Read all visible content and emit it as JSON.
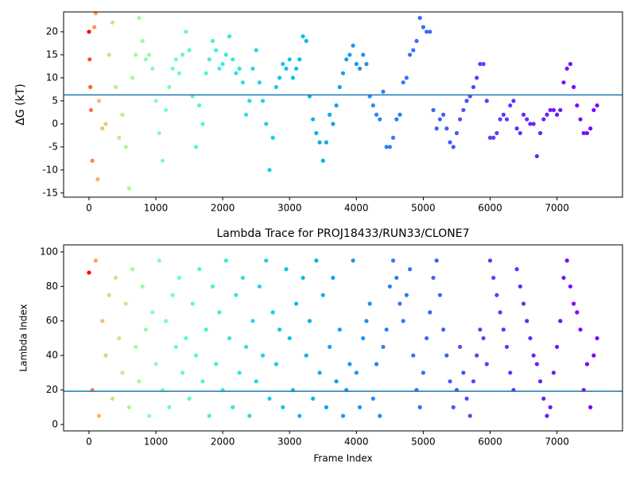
{
  "chart_data": [
    {
      "type": "scatter",
      "ylabel": "ΔG (kT)",
      "colormap": "rainbow_r",
      "x": [
        0,
        10,
        20,
        30,
        50,
        80,
        100,
        130,
        150,
        200,
        250,
        300,
        350,
        400,
        450,
        500,
        550,
        600,
        650,
        700,
        750,
        800,
        850,
        900,
        950,
        1000,
        1050,
        1100,
        1150,
        1200,
        1250,
        1300,
        1350,
        1400,
        1450,
        1500,
        1550,
        1600,
        1650,
        1700,
        1750,
        1800,
        1850,
        1900,
        1950,
        2000,
        2050,
        2100,
        2150,
        2200,
        2250,
        2300,
        2350,
        2400,
        2450,
        2500,
        2550,
        2600,
        2650,
        2700,
        2750,
        2800,
        2850,
        2900,
        2950,
        3000,
        3050,
        3100,
        3150,
        3200,
        3250,
        3300,
        3350,
        3400,
        3450,
        3500,
        3550,
        3600,
        3650,
        3700,
        3750,
        3800,
        3850,
        3900,
        3950,
        4000,
        4050,
        4100,
        4150,
        4200,
        4250,
        4300,
        4350,
        4400,
        4450,
        4500,
        4550,
        4600,
        4650,
        4700,
        4750,
        4800,
        4850,
        4900,
        4950,
        5000,
        5050,
        5100,
        5150,
        5200,
        5250,
        5300,
        5350,
        5400,
        5450,
        5500,
        5550,
        5600,
        5650,
        5700,
        5750,
        5800,
        5850,
        5900,
        5950,
        6000,
        6050,
        6100,
        6150,
        6200,
        6250,
        6300,
        6350,
        6400,
        6450,
        6500,
        6550,
        6600,
        6650,
        6700,
        6750,
        6800,
        6850,
        6900,
        6950,
        7000,
        7050,
        7100,
        7150,
        7200,
        7250,
        7300,
        7350,
        7400,
        7450,
        7500,
        7550,
        7600
      ],
      "values": [
        20,
        14,
        8,
        3,
        -8,
        21,
        24,
        -12,
        5,
        -1,
        0,
        15,
        22,
        8,
        -3,
        2,
        -5,
        -14,
        10,
        15,
        23,
        18,
        14,
        15,
        12,
        5,
        -2,
        -8,
        3,
        8,
        12,
        14,
        11,
        15,
        20,
        16,
        6,
        -5,
        4,
        0,
        11,
        14,
        18,
        16,
        12,
        13,
        15,
        19,
        14,
        11,
        12,
        9,
        2,
        5,
        12,
        16,
        9,
        5,
        0,
        -10,
        -3,
        8,
        10,
        13,
        12,
        14,
        10,
        12,
        14,
        19,
        18,
        6,
        1,
        -2,
        -4,
        -8,
        -4,
        2,
        0,
        4,
        8,
        11,
        14,
        15,
        17,
        13,
        12,
        15,
        13,
        6,
        4,
        2,
        1,
        7,
        -5,
        -5,
        -3,
        1,
        2,
        9,
        10,
        15,
        16,
        18,
        23,
        21,
        20,
        20,
        3,
        -1,
        1,
        2,
        -1,
        -4,
        -5,
        -2,
        1,
        3,
        5,
        6,
        8,
        10,
        13,
        13,
        5,
        -3,
        -3,
        -2,
        1,
        2,
        1,
        4,
        5,
        -1,
        -2,
        2,
        1,
        0,
        0,
        -7,
        -2,
        1,
        2,
        3,
        3,
        2,
        3,
        9,
        12,
        13,
        8,
        4,
        1,
        -2,
        -2,
        -1,
        3,
        4
      ],
      "hline": {
        "value": 6.3,
        "color": "#1f77b4"
      },
      "xlim": [
        -380,
        7980
      ],
      "xticks": [
        0,
        1000,
        2000,
        3000,
        4000,
        5000,
        6000,
        7000
      ],
      "ylim": [
        -15.9,
        24.3
      ],
      "yticks": [
        -15,
        -10,
        -5,
        0,
        5,
        10,
        15,
        20
      ]
    },
    {
      "type": "scatter",
      "title": "Lambda Trace for PROJ18433/RUN33/CLONE7",
      "xlabel": "Frame Index",
      "ylabel": "Lambda Index",
      "colormap": "rainbow_r",
      "x": [
        0,
        50,
        100,
        150,
        200,
        250,
        300,
        350,
        400,
        450,
        500,
        550,
        600,
        650,
        700,
        750,
        800,
        850,
        900,
        950,
        1000,
        1050,
        1100,
        1150,
        1200,
        1250,
        1300,
        1350,
        1400,
        1450,
        1500,
        1550,
        1600,
        1650,
        1700,
        1750,
        1800,
        1850,
        1900,
        1950,
        2000,
        2050,
        2100,
        2150,
        2200,
        2250,
        2300,
        2350,
        2400,
        2450,
        2500,
        2550,
        2600,
        2650,
        2700,
        2750,
        2800,
        2850,
        2900,
        2950,
        3000,
        3050,
        3100,
        3150,
        3200,
        3250,
        3300,
        3350,
        3400,
        3450,
        3500,
        3550,
        3600,
        3650,
        3700,
        3750,
        3800,
        3850,
        3900,
        3950,
        4000,
        4050,
        4100,
        4150,
        4200,
        4250,
        4300,
        4350,
        4400,
        4450,
        4500,
        4550,
        4600,
        4650,
        4700,
        4750,
        4800,
        4850,
        4900,
        4950,
        5000,
        5050,
        5100,
        5150,
        5200,
        5250,
        5300,
        5350,
        5400,
        5450,
        5500,
        5550,
        5600,
        5650,
        5700,
        5750,
        5800,
        5850,
        5900,
        5950,
        6000,
        6050,
        6100,
        6150,
        6200,
        6250,
        6300,
        6350,
        6400,
        6450,
        6500,
        6550,
        6600,
        6650,
        6700,
        6750,
        6800,
        6850,
        6900,
        6950,
        7000,
        7050,
        7100,
        7150,
        7200,
        7250,
        7300,
        7350,
        7400,
        7450,
        7500,
        7550,
        7600
      ],
      "values": [
        88,
        20,
        95,
        5,
        60,
        40,
        75,
        15,
        85,
        50,
        30,
        70,
        10,
        90,
        45,
        25,
        80,
        55,
        5,
        65,
        35,
        95,
        20,
        60,
        10,
        75,
        45,
        85,
        30,
        50,
        15,
        70,
        40,
        90,
        25,
        55,
        5,
        80,
        35,
        65,
        20,
        95,
        50,
        10,
        75,
        30,
        85,
        45,
        5,
        60,
        25,
        80,
        40,
        95,
        15,
        65,
        35,
        55,
        10,
        90,
        50,
        20,
        70,
        5,
        85,
        40,
        60,
        15,
        95,
        30,
        75,
        10,
        45,
        85,
        25,
        55,
        5,
        20,
        35,
        95,
        30,
        10,
        50,
        60,
        70,
        15,
        35,
        5,
        45,
        55,
        80,
        95,
        85,
        70,
        60,
        75,
        90,
        40,
        20,
        10,
        30,
        50,
        65,
        85,
        95,
        75,
        55,
        40,
        25,
        10,
        20,
        45,
        30,
        15,
        5,
        25,
        40,
        55,
        50,
        35,
        95,
        85,
        75,
        65,
        55,
        45,
        30,
        20,
        90,
        80,
        70,
        60,
        50,
        40,
        35,
        25,
        15,
        5,
        10,
        30,
        45,
        60,
        85,
        95,
        80,
        70,
        65,
        55,
        20,
        35,
        10,
        40,
        50
      ],
      "hline": {
        "value": 19.3,
        "color": "#1f77b4"
      },
      "xlim": [
        -380,
        7980
      ],
      "xticks": [
        0,
        1000,
        2000,
        3000,
        4000,
        5000,
        6000,
        7000
      ],
      "ylim": [
        -3.7,
        104.1
      ],
      "yticks": [
        0,
        20,
        40,
        60,
        80,
        100
      ]
    }
  ]
}
